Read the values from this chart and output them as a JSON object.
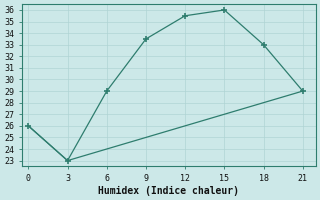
{
  "xlabel": "Humidex (Indice chaleur)",
  "line1_x": [
    0,
    3,
    6,
    9,
    12,
    15,
    18,
    21
  ],
  "line1_y": [
    26,
    23,
    29,
    33.5,
    35.5,
    36,
    33,
    29
  ],
  "line2_x": [
    0,
    3,
    21
  ],
  "line2_y": [
    26,
    23,
    29
  ],
  "line_color": "#2e7d6e",
  "bg_color": "#cce8e8",
  "grid_color_major": "#b0d4d4",
  "grid_color_minor": "#daeaea",
  "xlim": [
    -0.5,
    22
  ],
  "ylim": [
    22.5,
    36.5
  ],
  "xticks": [
    0,
    3,
    6,
    9,
    12,
    15,
    18,
    21
  ],
  "yticks": [
    23,
    24,
    25,
    26,
    27,
    28,
    29,
    30,
    31,
    32,
    33,
    34,
    35,
    36
  ]
}
